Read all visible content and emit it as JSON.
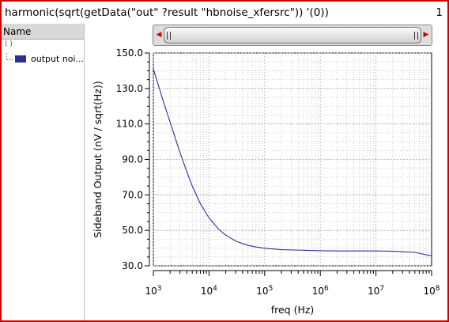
{
  "window": {
    "title": "harmonic(sqrt(getData(\"out\" ?result \"hbnoise_xfersrc\")) '(0))",
    "index": "1"
  },
  "legend_panel": {
    "header": "Name",
    "root_marks": "(      )",
    "items": [
      {
        "label": "output noi...",
        "color": "#2c2f93"
      }
    ]
  },
  "scrollbar": {
    "left_arrow_icon": "arrow-left-icon",
    "right_arrow_icon": "arrow-right-icon"
  },
  "colors": {
    "frame": "#cc0000",
    "trace": "#2c2f93",
    "grid": "#b0b0b0"
  },
  "chart_data": {
    "type": "line",
    "xlabel": "freq (Hz)",
    "ylabel": "Sideband Output (nV / sqrt(Hz))",
    "x_scale": "log",
    "xlim": [
      1000,
      100000000
    ],
    "ylim": [
      30,
      150
    ],
    "y_ticks": [
      30,
      50,
      70,
      90,
      110,
      130,
      150
    ],
    "y_tick_labels": [
      "30.0",
      "50.0",
      "70.0",
      "90.0",
      "110.0",
      "130.0",
      "150.0"
    ],
    "x_ticks": [
      {
        "base": "10",
        "exp": "3",
        "value": 1000
      },
      {
        "base": "10",
        "exp": "4",
        "value": 10000
      },
      {
        "base": "10",
        "exp": "5",
        "value": 100000
      },
      {
        "base": "10",
        "exp": "6",
        "value": 1000000
      },
      {
        "base": "10",
        "exp": "7",
        "value": 10000000
      },
      {
        "base": "10",
        "exp": "8",
        "value": 100000000
      }
    ],
    "grid": true,
    "series": [
      {
        "color": "#2c2f93",
        "x": [
          1000,
          1500,
          2000,
          3000,
          4000,
          5000,
          7000,
          10000,
          15000,
          20000,
          30000,
          50000,
          70000,
          100000,
          200000,
          500000,
          1000000,
          2000000,
          5000000,
          10000000,
          20000000,
          50000000,
          100000000
        ],
        "y": [
          141,
          123,
          111,
          94,
          83,
          75,
          65,
          57,
          50.5,
          47.3,
          44,
          41.5,
          40.6,
          39.9,
          39.1,
          38.8,
          38.5,
          38.4,
          38.4,
          38.4,
          38.2,
          37.6,
          35.6
        ]
      }
    ]
  }
}
